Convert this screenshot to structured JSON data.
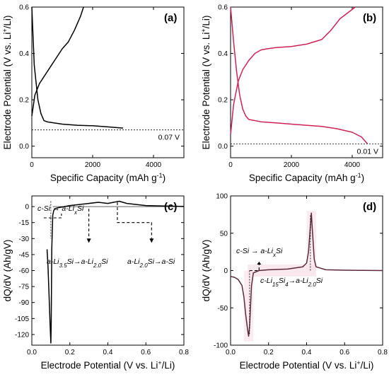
{
  "chart_data": [
    {
      "id": "a",
      "type": "line",
      "panel_label": "(a)",
      "xlabel": "Specific Capacity (mAh g-1)",
      "xlabel_main": "Specific Capacity (mAh g",
      "xlabel_sup": "-1",
      "xlabel_end": ")",
      "ylabel": "Electrode Potential (V vs. Li+/Li)",
      "xlim": [
        0,
        5000
      ],
      "ylim": [
        -0.05,
        0.6
      ],
      "xticks": [
        0,
        2000,
        4000
      ],
      "yticks": [
        0.0,
        0.2,
        0.4,
        0.6
      ],
      "ref_line": {
        "y": 0.07,
        "label": "0.07 V"
      },
      "series": [
        {
          "color": "#000000",
          "x": [
            0,
            80,
            200,
            300,
            400,
            500,
            1000,
            1500,
            2000,
            2500,
            3000
          ],
          "y": [
            0.6,
            0.35,
            0.2,
            0.14,
            0.11,
            0.105,
            0.095,
            0.09,
            0.088,
            0.083,
            0.078
          ]
        },
        {
          "color": "#000000",
          "x": [
            0,
            100,
            250,
            400,
            600,
            800,
            1000,
            1200,
            1400,
            1600,
            1700
          ],
          "y": [
            0.13,
            0.22,
            0.27,
            0.3,
            0.34,
            0.38,
            0.42,
            0.45,
            0.5,
            0.56,
            0.6
          ]
        }
      ]
    },
    {
      "id": "b",
      "type": "line",
      "panel_label": "(b)",
      "xlabel": "Specific Capacity (mAh g-1)",
      "xlabel_main": "Specific Capacity (mAh g",
      "xlabel_sup": "-1",
      "xlabel_end": ")",
      "ylabel": "Electrode Potential (V vs. Li+/Li)",
      "xlim": [
        0,
        5000
      ],
      "ylim": [
        -0.05,
        0.6
      ],
      "xticks": [
        0,
        2000,
        4000
      ],
      "yticks": [
        0.0,
        0.2,
        0.4,
        0.6
      ],
      "ref_line": {
        "y": 0.01,
        "label": "0.01 V"
      },
      "series": [
        {
          "color": "#cc2255",
          "x": [
            0,
            100,
            200,
            300,
            400,
            500,
            600,
            1000,
            1500,
            2000,
            2500,
            3000,
            3500,
            4000,
            4300,
            4500
          ],
          "y": [
            0.6,
            0.45,
            0.32,
            0.22,
            0.16,
            0.13,
            0.115,
            0.105,
            0.1,
            0.095,
            0.09,
            0.085,
            0.075,
            0.06,
            0.04,
            0.01
          ]
        },
        {
          "color": "#cc2255",
          "x": [
            0,
            100,
            250,
            400,
            600,
            800,
            1000,
            1200,
            1500,
            2000,
            2500,
            3000,
            3300,
            3600,
            3900,
            4100
          ],
          "y": [
            0.05,
            0.18,
            0.28,
            0.33,
            0.37,
            0.4,
            0.415,
            0.42,
            0.425,
            0.43,
            0.44,
            0.46,
            0.5,
            0.55,
            0.58,
            0.6
          ]
        }
      ]
    },
    {
      "id": "c",
      "type": "line",
      "panel_label": "(c)",
      "xlabel": "Electrode Potential (V vs. Li+/Li)",
      "xlabel_main": "Electrode Potential (V vs. Li",
      "xlabel_sup": "+",
      "xlabel_end": "/Li)",
      "ylabel": "dQ/dV (Ah/gV)",
      "xlim": [
        0.0,
        0.8
      ],
      "ylim": [
        -130,
        10
      ],
      "xticks": [
        0.0,
        0.2,
        0.4,
        0.6,
        0.8
      ],
      "yticks": [
        0,
        -15,
        -30,
        -45,
        -60,
        -75,
        -90,
        -105,
        -120
      ],
      "annotations": [
        {
          "text": "c-Si → a-LixSi"
        },
        {
          "text": "a-Li3.5Si → a-Li2.0Si"
        },
        {
          "text": "a-Li2.0Si → a-Si"
        }
      ],
      "series": [
        {
          "color": "#000000",
          "x": [
            0.08,
            0.085,
            0.09,
            0.093,
            0.096,
            0.1,
            0.102,
            0.105,
            0.11,
            0.115,
            0.12,
            0.14,
            0.17,
            0.2,
            0.25,
            0.3,
            0.35,
            0.4,
            0.43,
            0.46,
            0.5,
            0.55,
            0.6,
            0.7,
            0.8
          ],
          "y": [
            -40,
            -55,
            -80,
            -95,
            -110,
            -128,
            -110,
            -40,
            -8,
            -4,
            -2,
            -1,
            0,
            1,
            2,
            3,
            4,
            3,
            4,
            5,
            3,
            2,
            1,
            0.5,
            0.2
          ]
        }
      ]
    },
    {
      "id": "d",
      "type": "line",
      "panel_label": "(d)",
      "xlabel": "Electrode Potential (V vs. Li+/Li)",
      "xlabel_main": "Electrode Potential (V vs. Li",
      "xlabel_sup": "+",
      "xlabel_end": "/Li)",
      "ylabel": "dQ/dV (Ah/gV)",
      "xlim": [
        0.0,
        0.8
      ],
      "ylim": [
        -100,
        100
      ],
      "xticks": [
        0.0,
        0.2,
        0.4,
        0.6,
        0.8
      ],
      "yticks": [
        -100,
        -50,
        0,
        50,
        100
      ],
      "annotations": [
        {
          "text": "c-Si → a-LixSi"
        },
        {
          "text": "c-Li15Si4 → a-Li2.0Si"
        }
      ],
      "series": [
        {
          "color": "#5a2a3a",
          "x": [
            0.0,
            0.02,
            0.04,
            0.06,
            0.07,
            0.08,
            0.09,
            0.095,
            0.1,
            0.11,
            0.12,
            0.15,
            0.2,
            0.3,
            0.38,
            0.4,
            0.41,
            0.42,
            0.425,
            0.43,
            0.44,
            0.45,
            0.5,
            0.6,
            0.7,
            0.8
          ],
          "y": [
            -8,
            -9,
            -12,
            -20,
            -35,
            -60,
            -80,
            -88,
            -75,
            -20,
            -3,
            0,
            1,
            2,
            5,
            10,
            25,
            60,
            77,
            55,
            15,
            5,
            1,
            0.5,
            0.2,
            0
          ]
        }
      ]
    }
  ]
}
